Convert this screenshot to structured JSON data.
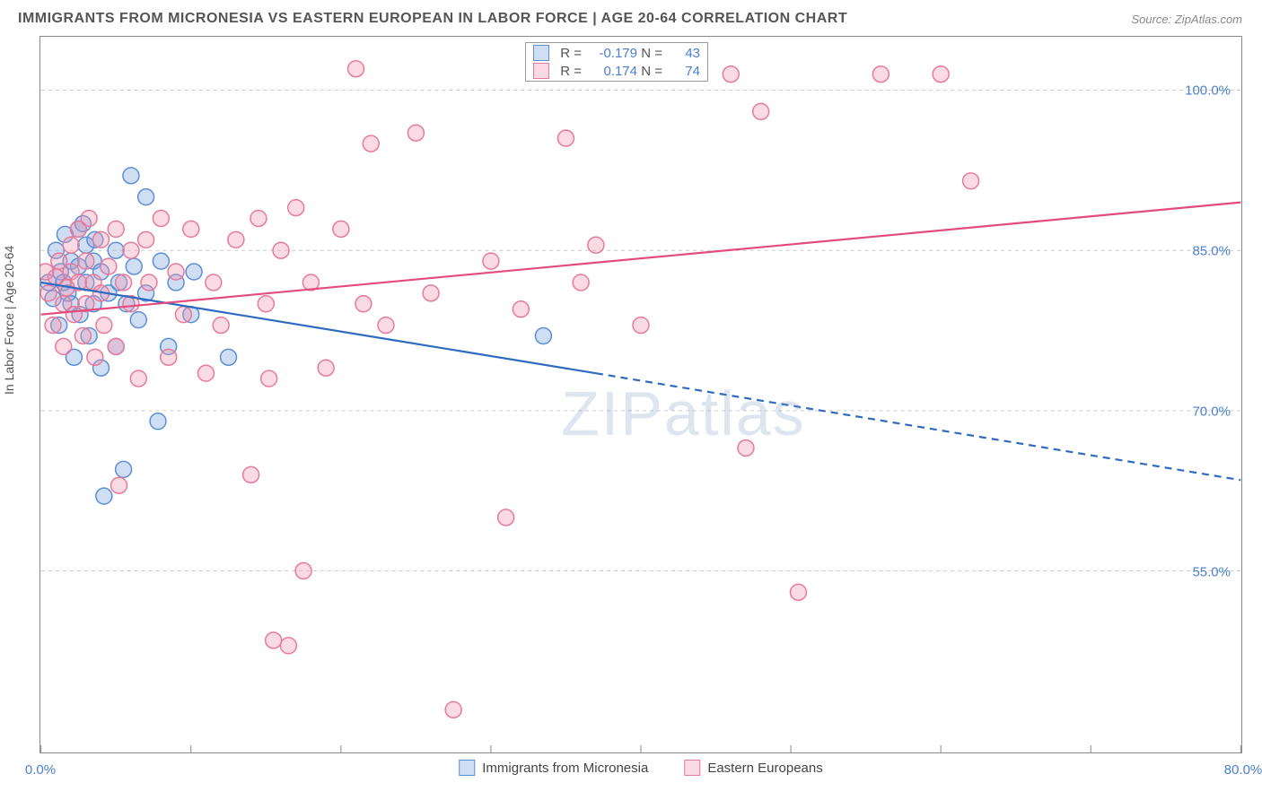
{
  "title": "IMMIGRANTS FROM MICRONESIA VS EASTERN EUROPEAN IN LABOR FORCE | AGE 20-64 CORRELATION CHART",
  "source": "Source: ZipAtlas.com",
  "ylabel": "In Labor Force | Age 20-64",
  "watermark": "ZIPatlas",
  "chart": {
    "type": "scatter",
    "xlim": [
      0,
      80
    ],
    "ylim": [
      38,
      105
    ],
    "xticks": [
      0,
      10,
      20,
      30,
      40,
      50,
      60,
      70,
      80
    ],
    "xtick_labels": {
      "0": "0.0%",
      "80": "80.0%"
    },
    "yticks": [
      55,
      70,
      85,
      100
    ],
    "ytick_labels": {
      "55": "55.0%",
      "70": "70.0%",
      "85": "85.0%",
      "100": "100.0%"
    },
    "grid_color": "#cccccc",
    "grid_dash": "4 4",
    "axis_tick_color": "#888888",
    "background_color": "#ffffff",
    "tick_label_color": "#4a7fce",
    "marker_radius": 9,
    "marker_stroke_width": 1.5,
    "trend_line_width": 2.2
  },
  "series": [
    {
      "name": "Immigrants from Micronesia",
      "fill": "rgba(120,160,220,0.35)",
      "stroke": "#5b8fd6",
      "R": "-0.179",
      "N": "43",
      "trend": {
        "x1": 0,
        "y1": 82,
        "x2_solid": 37,
        "y2_solid": 73.5,
        "x2": 80,
        "y2": 63.5,
        "color": "#2e6bc0"
      },
      "points": [
        [
          0.5,
          82
        ],
        [
          0.8,
          80.5
        ],
        [
          1.0,
          85
        ],
        [
          1.2,
          78
        ],
        [
          1.3,
          83
        ],
        [
          1.5,
          82
        ],
        [
          1.6,
          86.5
        ],
        [
          1.8,
          81
        ],
        [
          2.0,
          84
        ],
        [
          2.0,
          80
        ],
        [
          2.2,
          75
        ],
        [
          2.5,
          87
        ],
        [
          2.5,
          83.5
        ],
        [
          2.6,
          79
        ],
        [
          3.0,
          82
        ],
        [
          3.0,
          85.5
        ],
        [
          3.2,
          77
        ],
        [
          3.5,
          84
        ],
        [
          3.5,
          80
        ],
        [
          3.6,
          86
        ],
        [
          4.0,
          83
        ],
        [
          4.0,
          74
        ],
        [
          4.2,
          62
        ],
        [
          4.5,
          81
        ],
        [
          5.0,
          85
        ],
        [
          5.0,
          76
        ],
        [
          5.2,
          82
        ],
        [
          5.5,
          64.5
        ],
        [
          5.7,
          80
        ],
        [
          6.0,
          92
        ],
        [
          6.2,
          83.5
        ],
        [
          6.5,
          78.5
        ],
        [
          7.0,
          90
        ],
        [
          7.0,
          81
        ],
        [
          7.8,
          69
        ],
        [
          8.0,
          84
        ],
        [
          8.5,
          76
        ],
        [
          9.0,
          82
        ],
        [
          10.0,
          79
        ],
        [
          10.2,
          83
        ],
        [
          12.5,
          75
        ],
        [
          33.5,
          77
        ],
        [
          2.8,
          87.5
        ]
      ]
    },
    {
      "name": "Eastern Europeans",
      "fill": "rgba(240,150,175,0.35)",
      "stroke": "#e77a9a",
      "R": "0.174",
      "N": "74",
      "trend": {
        "x1": 0,
        "y1": 79,
        "x2_solid": 80,
        "y2_solid": 89.5,
        "x2": 80,
        "y2": 89.5,
        "color": "#e34b7c"
      },
      "points": [
        [
          0.5,
          81
        ],
        [
          0.8,
          78
        ],
        [
          1.0,
          82.5
        ],
        [
          1.2,
          84
        ],
        [
          1.5,
          80
        ],
        [
          1.5,
          76
        ],
        [
          2.0,
          83
        ],
        [
          2.0,
          85.5
        ],
        [
          2.2,
          79
        ],
        [
          2.5,
          82
        ],
        [
          2.5,
          87
        ],
        [
          2.8,
          77
        ],
        [
          3.0,
          84
        ],
        [
          3.0,
          80
        ],
        [
          3.2,
          88
        ],
        [
          3.5,
          82
        ],
        [
          3.6,
          75
        ],
        [
          4.0,
          86
        ],
        [
          4.0,
          81
        ],
        [
          4.2,
          78
        ],
        [
          4.5,
          83.5
        ],
        [
          5.0,
          87
        ],
        [
          5.0,
          76
        ],
        [
          5.2,
          63
        ],
        [
          5.5,
          82
        ],
        [
          6.0,
          85
        ],
        [
          6.0,
          80
        ],
        [
          6.5,
          73
        ],
        [
          7.0,
          86
        ],
        [
          7.2,
          82
        ],
        [
          8.0,
          88
        ],
        [
          8.5,
          75
        ],
        [
          9.0,
          83
        ],
        [
          9.5,
          79
        ],
        [
          10.0,
          87
        ],
        [
          11.0,
          73.5
        ],
        [
          11.5,
          82
        ],
        [
          12.0,
          78
        ],
        [
          13.0,
          86
        ],
        [
          14.0,
          64
        ],
        [
          14.5,
          88
        ],
        [
          15.0,
          80
        ],
        [
          15.2,
          73
        ],
        [
          15.5,
          48.5
        ],
        [
          16.0,
          85
        ],
        [
          16.5,
          48
        ],
        [
          17.0,
          89
        ],
        [
          17.5,
          55
        ],
        [
          18.0,
          82
        ],
        [
          19.0,
          74
        ],
        [
          20.0,
          87
        ],
        [
          21.0,
          102
        ],
        [
          21.5,
          80
        ],
        [
          22.0,
          95
        ],
        [
          23.0,
          78
        ],
        [
          25.0,
          96
        ],
        [
          26.0,
          81
        ],
        [
          27.5,
          42
        ],
        [
          30.0,
          84
        ],
        [
          31.0,
          60
        ],
        [
          32.0,
          79.5
        ],
        [
          35.0,
          95.5
        ],
        [
          36.0,
          82
        ],
        [
          37.0,
          85.5
        ],
        [
          40.0,
          78
        ],
        [
          46.0,
          101.5
        ],
        [
          47.0,
          66.5
        ],
        [
          48.0,
          98
        ],
        [
          50.5,
          53
        ],
        [
          56.0,
          101.5
        ],
        [
          60.0,
          101.5
        ],
        [
          62.0,
          91.5
        ],
        [
          0.3,
          83
        ],
        [
          1.7,
          81.5
        ]
      ]
    }
  ],
  "bottom_legend": [
    {
      "label": "Immigrants from Micronesia",
      "series": 0
    },
    {
      "label": "Eastern Europeans",
      "series": 1
    }
  ]
}
